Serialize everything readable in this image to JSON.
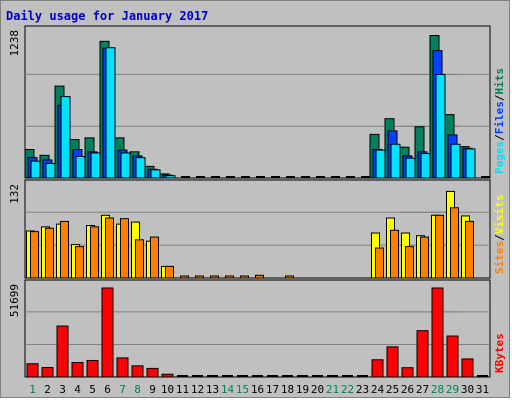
{
  "title": "Daily usage for January 2017",
  "colors": {
    "background": "#c0c0c0",
    "plot_bg": "#c0c0c0",
    "title": "#0000c0",
    "hits": "#00805c",
    "files": "#0040ff",
    "pages": "#00e0ff",
    "visits": "#ffff00",
    "sites": "#ff8000",
    "kbytes": "#ff0000",
    "weekend_label": "#00805c",
    "weekday_label": "#000000"
  },
  "chart_data": [
    {
      "type": "bar",
      "panel": "hits",
      "ytick": "1238",
      "ymax": 1238,
      "legend": [
        {
          "label": "Pages",
          "color": "#00e0ff"
        },
        {
          "label": "/",
          "color": "#000000"
        },
        {
          "label": "Files",
          "color": "#0040ff"
        },
        {
          "label": "/",
          "color": "#000000"
        },
        {
          "label": "Hits",
          "color": "#00805c"
        }
      ],
      "series": [
        {
          "name": "Hits",
          "values": [
            245,
            195,
            790,
            330,
            345,
            1175,
            345,
            225,
            100,
            35,
            0,
            0,
            0,
            0,
            0,
            0,
            0,
            0,
            0,
            0,
            0,
            0,
            0,
            375,
            510,
            265,
            440,
            1225,
            545,
            270,
            0
          ]
        },
        {
          "name": "Files",
          "values": [
            175,
            155,
            625,
            245,
            225,
            1115,
            240,
            190,
            75,
            25,
            0,
            0,
            0,
            0,
            0,
            0,
            0,
            0,
            0,
            0,
            0,
            0,
            0,
            245,
            405,
            190,
            225,
            1095,
            370,
            255,
            0
          ]
        },
        {
          "name": "Pages",
          "values": [
            145,
            125,
            700,
            185,
            215,
            1120,
            215,
            175,
            70,
            20,
            0,
            0,
            0,
            0,
            0,
            0,
            0,
            0,
            0,
            0,
            0,
            0,
            0,
            240,
            290,
            170,
            210,
            890,
            290,
            250,
            0
          ]
        }
      ]
    },
    {
      "type": "bar",
      "panel": "visits",
      "ytick": "132",
      "ymax": 132,
      "legend": [
        {
          "label": "Sites",
          "color": "#ff8000"
        },
        {
          "label": "/",
          "color": "#000000"
        },
        {
          "label": "Visits",
          "color": "#ffff00"
        }
      ],
      "series": [
        {
          "name": "Visits",
          "values": [
            69,
            75,
            79,
            49,
            77,
            92,
            79,
            82,
            54,
            17,
            0,
            0,
            0,
            0,
            0,
            0,
            0,
            0,
            0,
            0,
            0,
            0,
            0,
            66,
            88,
            66,
            62,
            92,
            127,
            91,
            0
          ]
        },
        {
          "name": "Sites",
          "values": [
            68,
            73,
            83,
            46,
            75,
            88,
            87,
            56,
            60,
            17,
            2,
            2,
            2,
            2,
            2,
            4,
            0,
            2,
            0,
            0,
            0,
            0,
            0,
            44,
            70,
            46,
            60,
            92,
            103,
            83,
            0
          ]
        }
      ]
    },
    {
      "type": "bar",
      "panel": "kbytes",
      "ytick": "51699",
      "ymax": 51699,
      "legend": [
        {
          "label": "KBytes",
          "color": "#ff0000"
        }
      ],
      "series": [
        {
          "name": "KBytes",
          "values": [
            7700,
            5500,
            29600,
            8400,
            9600,
            51699,
            11100,
            6500,
            5000,
            1600,
            0,
            0,
            0,
            0,
            0,
            0,
            0,
            0,
            0,
            0,
            0,
            0,
            0,
            10000,
            17500,
            5400,
            26900,
            51699,
            23800,
            10500,
            0
          ]
        }
      ]
    }
  ],
  "days": [
    "1",
    "2",
    "3",
    "4",
    "5",
    "6",
    "7",
    "8",
    "9",
    "10",
    "11",
    "12",
    "13",
    "14",
    "15",
    "16",
    "17",
    "18",
    "19",
    "20",
    "21",
    "22",
    "23",
    "24",
    "25",
    "26",
    "27",
    "28",
    "29",
    "30",
    "31"
  ],
  "weekend_days": [
    1,
    7,
    8,
    14,
    15,
    21,
    22,
    28,
    29
  ]
}
